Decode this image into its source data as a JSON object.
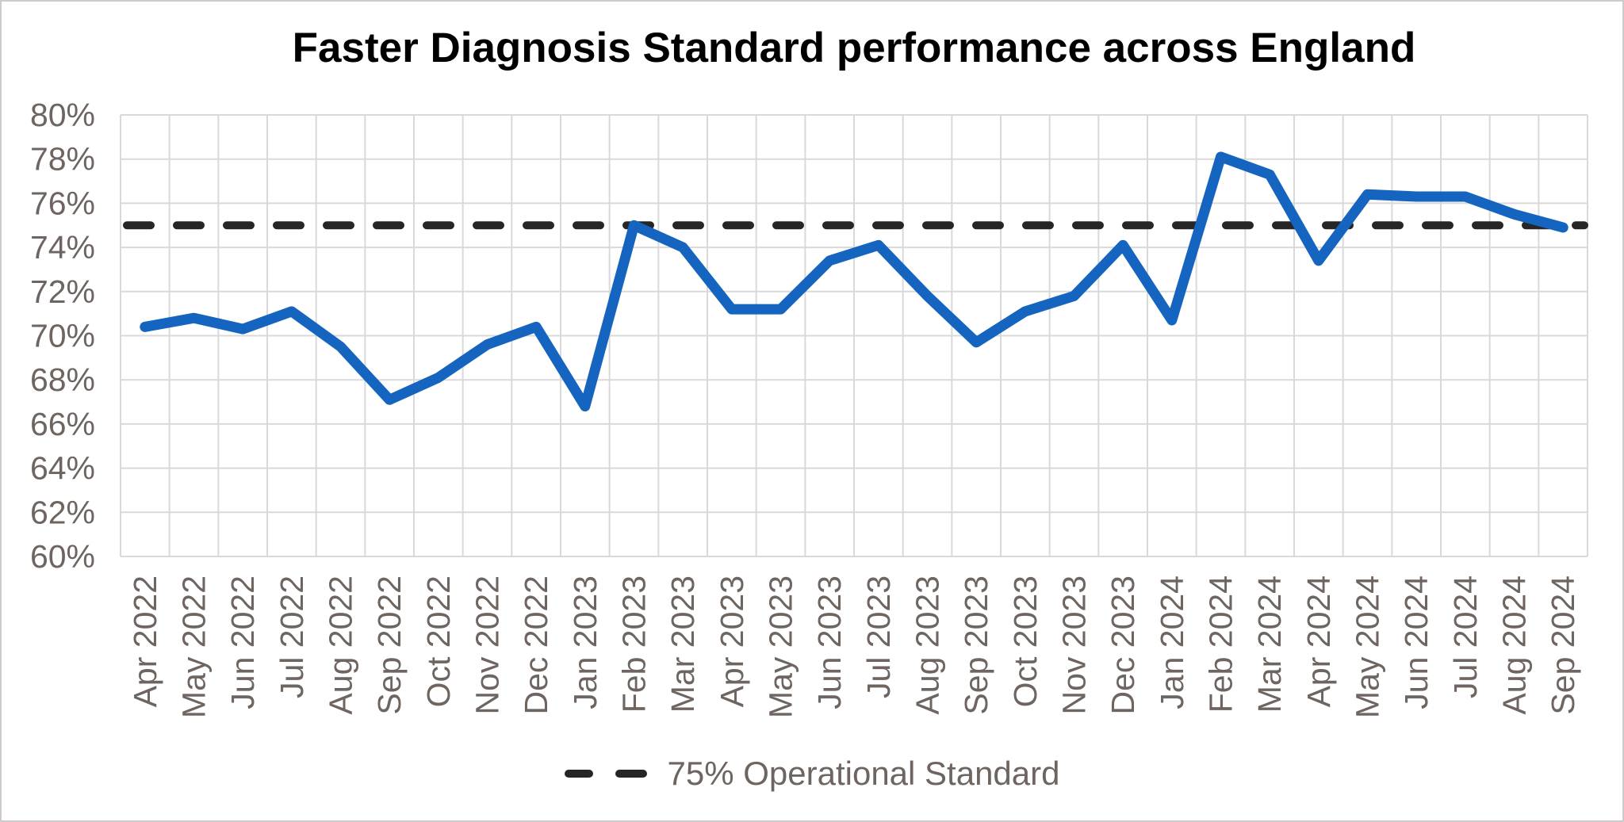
{
  "chart_data": {
    "type": "line",
    "title": "Faster Diagnosis Standard performance across England",
    "categories": [
      "Apr 2022",
      "May 2022",
      "Jun 2022",
      "Jul 2022",
      "Aug 2022",
      "Sep 2022",
      "Oct 2022",
      "Nov 2022",
      "Dec 2022",
      "Jan 2023",
      "Feb 2023",
      "Mar 2023",
      "Apr 2023",
      "May 2023",
      "Jun 2023",
      "Jul 2023",
      "Aug 2023",
      "Sep 2023",
      "Oct 2023",
      "Nov 2023",
      "Dec 2023",
      "Jan 2024",
      "Feb 2024",
      "Mar 2024",
      "Apr 2024",
      "May 2024",
      "Jun 2024",
      "Jul 2024",
      "Aug 2024",
      "Sep 2024"
    ],
    "series": [
      {
        "values": [
          70.4,
          70.8,
          70.3,
          71.1,
          69.5,
          67.1,
          68.1,
          69.6,
          70.4,
          66.8,
          75.0,
          74.0,
          71.2,
          71.2,
          73.4,
          74.1,
          71.8,
          69.7,
          71.1,
          71.8,
          74.1,
          70.7,
          78.1,
          77.3,
          73.4,
          76.4,
          76.3,
          76.3,
          75.5,
          74.9
        ],
        "color": "#1565c0"
      }
    ],
    "target_line": {
      "label": "75% Operational Standard",
      "value": 75,
      "color": "#262626",
      "style": "dashed"
    },
    "ylim": [
      60,
      80
    ],
    "ytick_labels": [
      "80%",
      "78%",
      "76%",
      "74%",
      "72%",
      "70%",
      "68%",
      "66%",
      "64%",
      "62%",
      "60%"
    ],
    "grid": true,
    "legend_position": "bottom-center",
    "title_color": "#000000",
    "axis_label_color": "#6e6460",
    "gridline_color": "#d9d9d9"
  }
}
